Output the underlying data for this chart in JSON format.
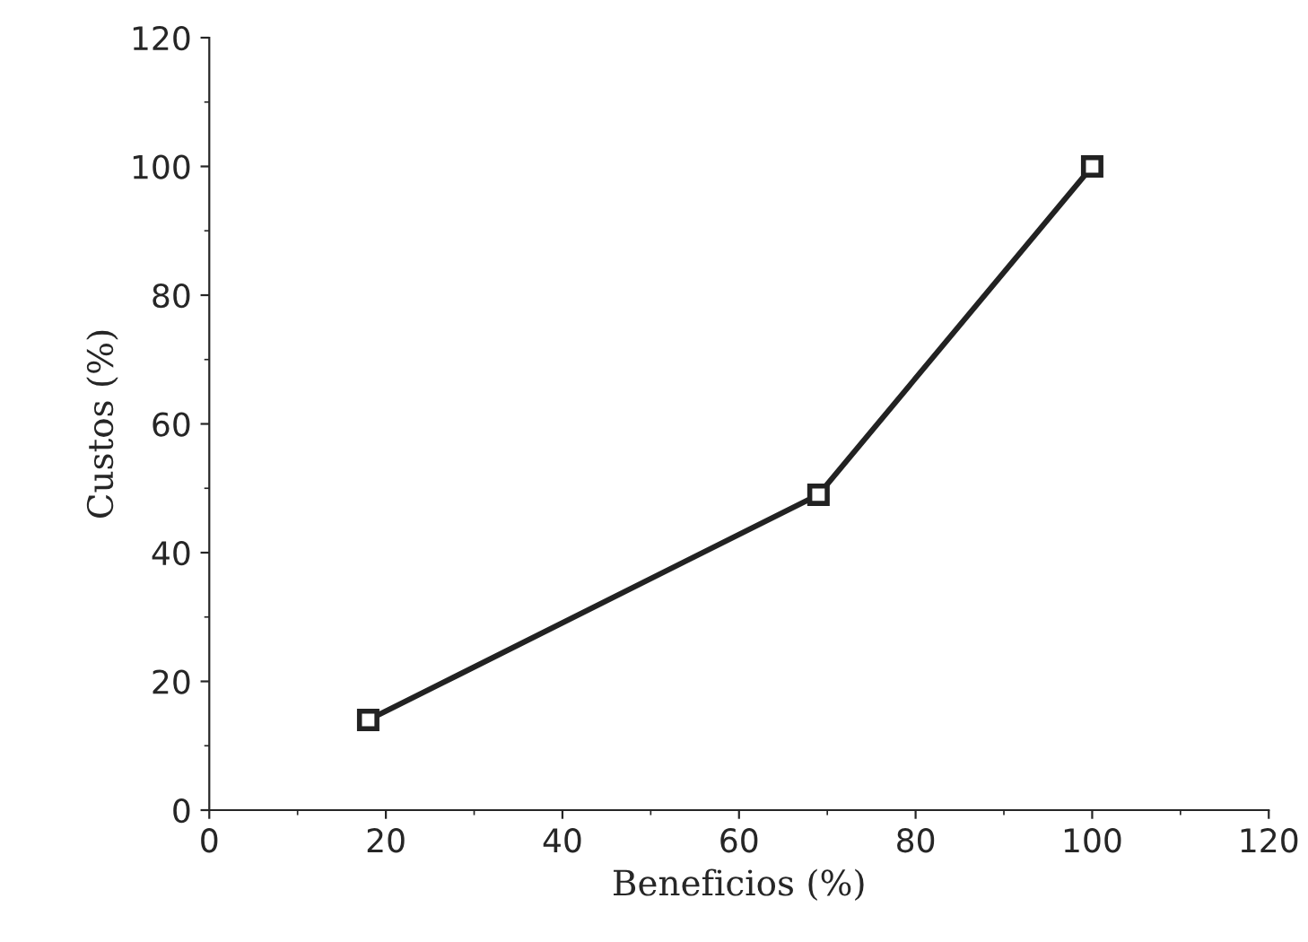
{
  "chart_data": {
    "type": "line",
    "xlabel": "Beneficios (%)",
    "ylabel": "Custos (%)",
    "series": [
      {
        "color": "#222222",
        "x": [
          18,
          69,
          100
        ],
        "values": [
          14,
          49,
          100
        ]
      }
    ],
    "xlim": [
      0,
      120
    ],
    "ylim": [
      0,
      120
    ],
    "xticks": [
      0,
      20,
      40,
      60,
      80,
      100,
      120
    ],
    "yticks": [
      0,
      20,
      40,
      60,
      80,
      100,
      120
    ],
    "grid": false,
    "legend": false,
    "marker": "square",
    "line_style": "solid"
  }
}
